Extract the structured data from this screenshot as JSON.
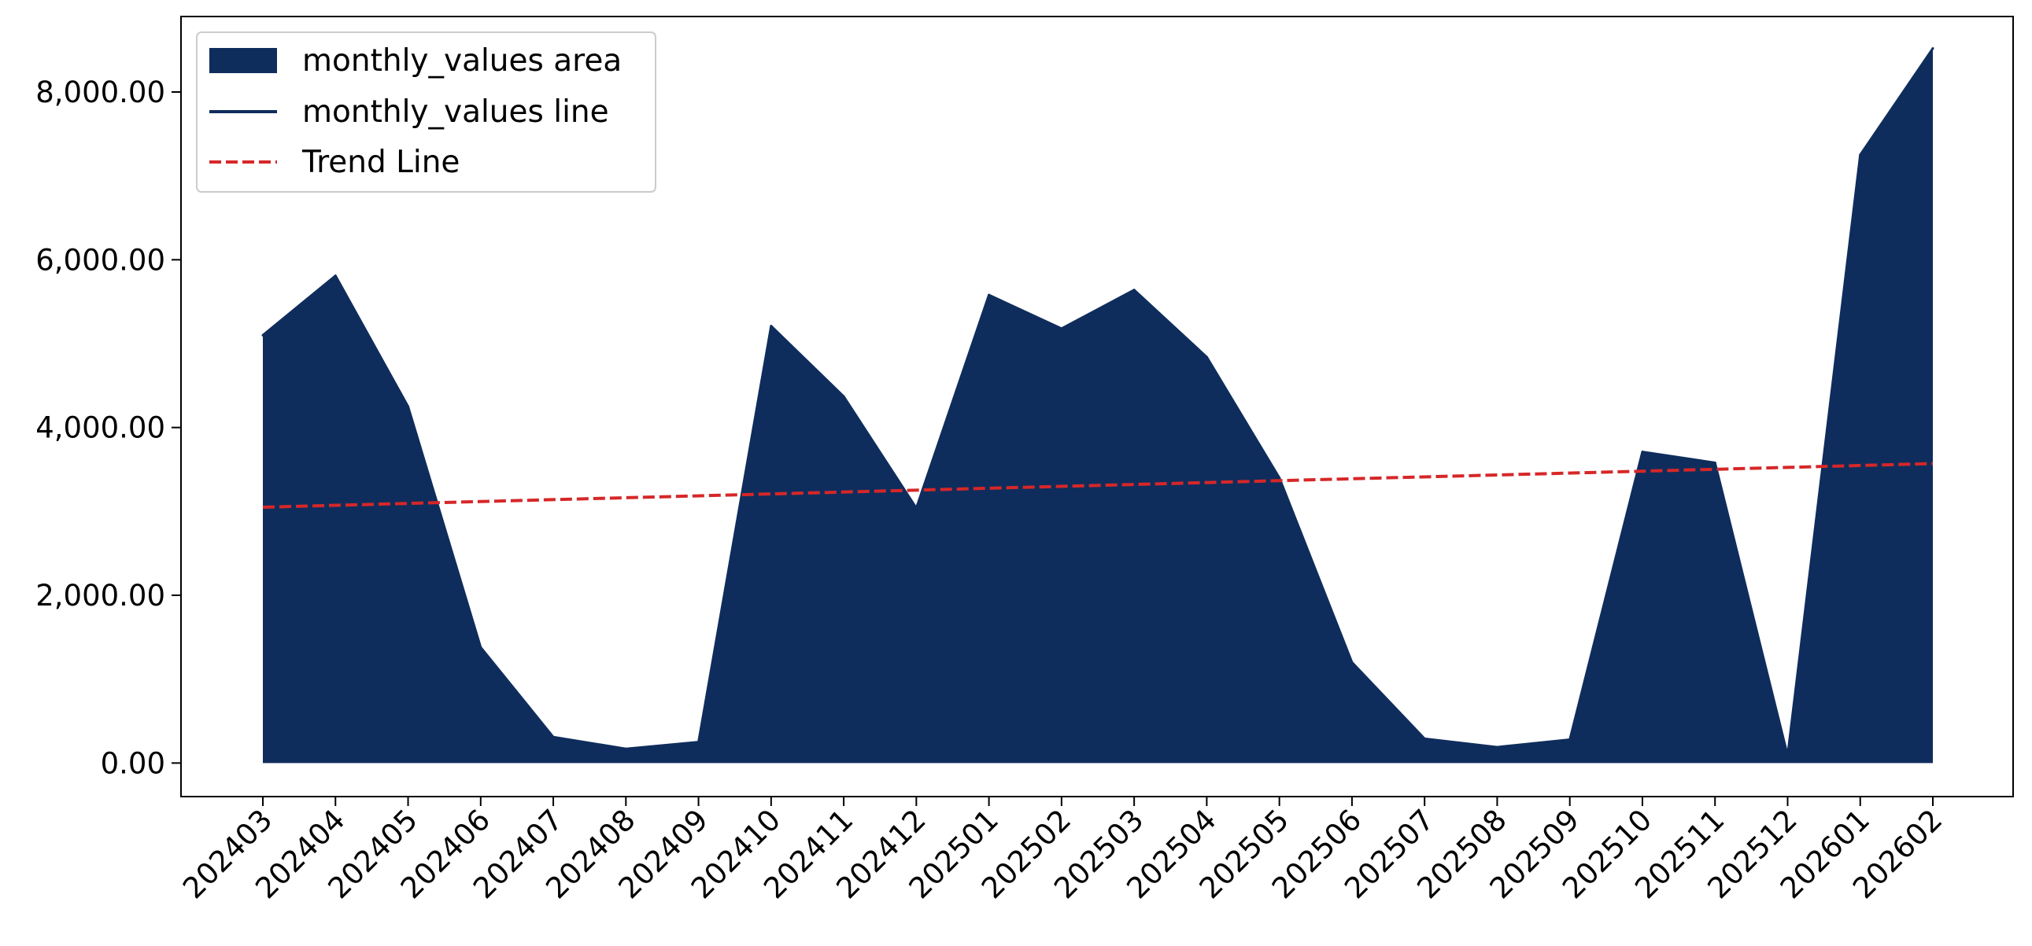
{
  "chart_data": {
    "type": "area",
    "categories": [
      "202403",
      "202404",
      "202405",
      "202406",
      "202407",
      "202408",
      "202409",
      "202410",
      "202411",
      "202412",
      "202501",
      "202502",
      "202503",
      "202504",
      "202505",
      "202506",
      "202507",
      "202508",
      "202509",
      "202510",
      "202511",
      "202512",
      "202601",
      "202602"
    ],
    "series": [
      {
        "name": "monthly_values area",
        "kind": "area",
        "color": "#0f2d5c",
        "values": [
          5100,
          5810,
          4250,
          1380,
          310,
          170,
          250,
          5210,
          4370,
          3040,
          5580,
          5180,
          5640,
          4840,
          3400,
          1200,
          290,
          190,
          280,
          3710,
          3580,
          90,
          7250,
          8520
        ]
      },
      {
        "name": "monthly_values line",
        "kind": "line",
        "color": "#0f2d5c",
        "values": [
          5100,
          5810,
          4250,
          1380,
          310,
          170,
          250,
          5210,
          4370,
          3040,
          5580,
          5180,
          5640,
          4840,
          3400,
          1200,
          290,
          190,
          280,
          3710,
          3580,
          90,
          7250,
          8520
        ]
      },
      {
        "name": "Trend Line",
        "kind": "trend",
        "color": "#d62728",
        "style": "dashed",
        "start": 3050,
        "end": 3570
      }
    ],
    "ylim": [
      -400,
      8900
    ],
    "yticks": [
      0,
      2000,
      4000,
      6000,
      8000
    ],
    "ytick_labels": [
      "0.00",
      "2,000.00",
      "4,000.00",
      "6,000.00",
      "8,000.00"
    ],
    "xlabel": "",
    "ylabel": "",
    "title": "",
    "grid": false,
    "legend_position": "upper-left"
  }
}
